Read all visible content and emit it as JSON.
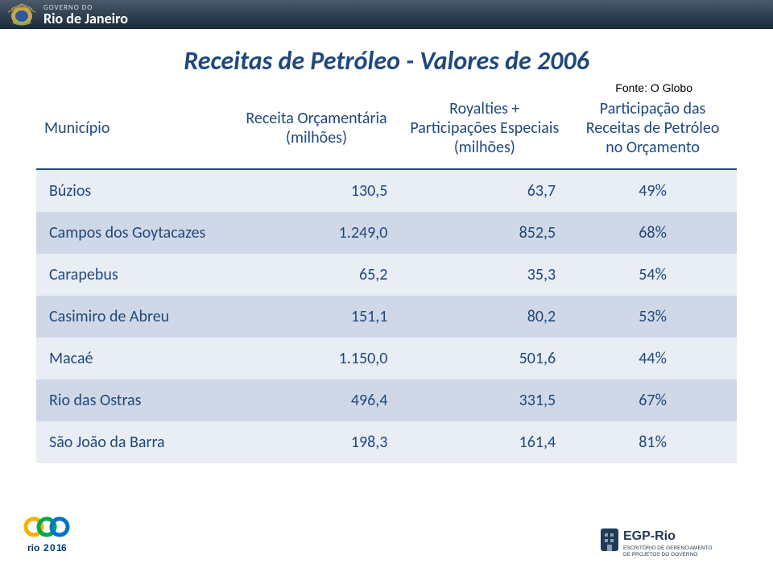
{
  "topbar": {
    "govt": "GOVERNO DO",
    "state": "Rio de Janeiro"
  },
  "title": "Receitas de Petróleo - Valores de 2006",
  "source": "Fonte: O Globo",
  "columns": [
    "Município",
    "Receita Orçamentária (milhões)",
    "Royalties + Participações Especiais (milhões)",
    "Participação das Receitas de Petróleo no Orçamento"
  ],
  "rows": [
    {
      "mun": "Búzios",
      "rec": "130,5",
      "roy": "63,7",
      "part": "49%"
    },
    {
      "mun": "Campos dos Goytacazes",
      "rec": "1.249,0",
      "roy": "852,5",
      "part": "68%"
    },
    {
      "mun": "Carapebus",
      "rec": "65,2",
      "roy": "35,3",
      "part": "54%"
    },
    {
      "mun": "Casimiro de Abreu",
      "rec": "151,1",
      "roy": "80,2",
      "part": "53%"
    },
    {
      "mun": "Macaé",
      "rec": "1.150,0",
      "roy": "501,6",
      "part": "44%"
    },
    {
      "mun": "Rio das Ostras",
      "rec": "496,4",
      "roy": "331,5",
      "part": "67%"
    },
    {
      "mun": "São João da Barra",
      "rec": "198,3",
      "roy": "161,4",
      "part": "81%"
    }
  ],
  "footer": {
    "rio2016": "rio2016",
    "egp1": "EGP-Rio",
    "egp2": "ESCRITÓRIO DE GERENCIAMENTO",
    "egp3": "DE PROJETOS DO GOVERNO"
  },
  "colors": {
    "header_dark": "#1a2a3a",
    "title_blue": "#1f497d",
    "row_light": "#e9edf4",
    "row_dark": "#d0d8e7"
  }
}
